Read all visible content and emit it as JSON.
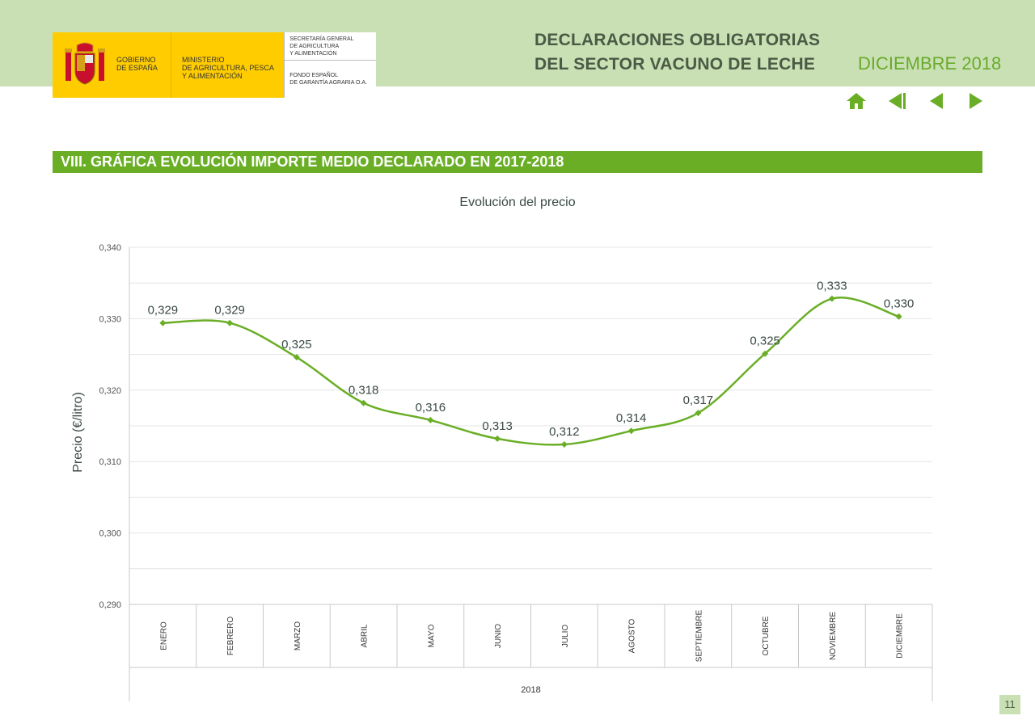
{
  "header": {
    "gob_line1": "GOBIERNO",
    "gob_line2": "DE ESPAÑA",
    "min_line1": "MINISTERIO",
    "min_line2": "DE AGRICULTURA, PESCA",
    "min_line3": "Y ALIMENTACIÓN",
    "sec_line1": "SECRETARÍA GENERAL",
    "sec_line2": "DE AGRICULTURA",
    "sec_line3": "Y ALIMENTACIÓN",
    "fondo_line1": "FONDO ESPAÑOL",
    "fondo_line2": "DE GARANTÍA AGRARIA O.A.",
    "title_line1": "DECLARACIONES OBLIGATORIAS",
    "title_line2": "DEL SECTOR VACUNO DE LECHE",
    "period": "DICIEMBRE 2018"
  },
  "nav": {
    "icons": [
      "home-icon",
      "first-page-icon",
      "previous-page-icon",
      "next-page-icon"
    ],
    "color": "#6aae26"
  },
  "section": {
    "title": "VIII. GRÁFICA EVOLUCIÓN IMPORTE MEDIO DECLARADO EN 2017-2018"
  },
  "chart_data": {
    "type": "line",
    "title": "Evolución del precio",
    "ylabel": "Precio (€/litro)",
    "xlabel": "2018",
    "ylim": [
      0.29,
      0.34
    ],
    "yticks": [
      "0,290",
      "0,300",
      "0,310",
      "0,320",
      "0,330",
      "0,340"
    ],
    "ytick_values": [
      0.29,
      0.3,
      0.31,
      0.32,
      0.33,
      0.34
    ],
    "categories": [
      "ENERO",
      "FEBRERO",
      "MARZO",
      "ABRIL",
      "MAYO",
      "JUNIO",
      "JULIO",
      "AGOSTO",
      "SEPTIEMBRE",
      "OCTUBRE",
      "NOVIEMBRE",
      "DICIEMBRE"
    ],
    "values": [
      0.3294,
      0.3294,
      0.3246,
      0.3182,
      0.3158,
      0.3132,
      0.3124,
      0.3143,
      0.3168,
      0.3251,
      0.3328,
      0.3303
    ],
    "labels": [
      "0,329",
      "0,329",
      "0,325",
      "0,318",
      "0,316",
      "0,313",
      "0,312",
      "0,314",
      "0,317",
      "0,325",
      "0,333",
      "0,330"
    ],
    "grid": true,
    "line_color": "#6aae26"
  },
  "page": {
    "number": "11"
  }
}
